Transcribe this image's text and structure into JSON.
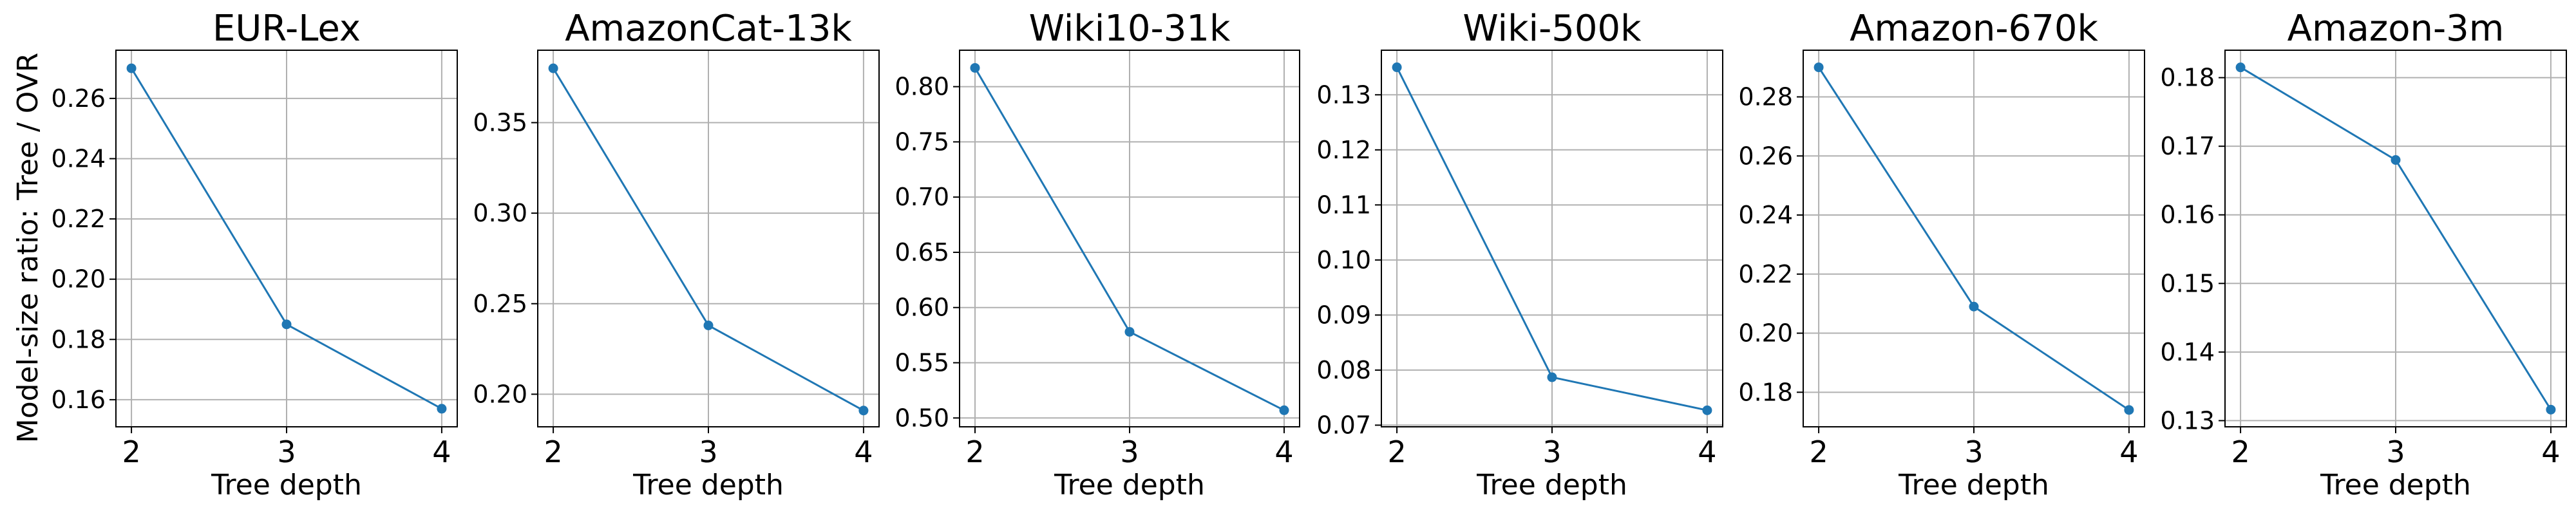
{
  "figure": {
    "ylabel": "Model-size ratio: Tree / OVR"
  },
  "chart_data": [
    {
      "type": "line",
      "title": "EUR-Lex",
      "xlabel": "Tree depth",
      "x": [
        2,
        3,
        4
      ],
      "xticks": [
        "2",
        "3",
        "4"
      ],
      "series": [
        {
          "values": [
            0.27,
            0.185,
            0.157
          ]
        }
      ],
      "ylim": [
        0.151,
        0.276
      ],
      "yticks": [
        0.16,
        0.18,
        0.2,
        0.22,
        0.24,
        0.26
      ],
      "ytick_labels": [
        "0.16",
        "0.18",
        "0.20",
        "0.22",
        "0.24",
        "0.26"
      ],
      "grid": true,
      "color": "#1f77b4"
    },
    {
      "type": "line",
      "title": "AmazonCat-13k",
      "xlabel": "Tree depth",
      "x": [
        2,
        3,
        4
      ],
      "xticks": [
        "2",
        "3",
        "4"
      ],
      "series": [
        {
          "values": [
            0.38,
            0.238,
            0.191
          ]
        }
      ],
      "ylim": [
        0.182,
        0.39
      ],
      "yticks": [
        0.2,
        0.25,
        0.3,
        0.35
      ],
      "ytick_labels": [
        "0.20",
        "0.25",
        "0.30",
        "0.35"
      ],
      "grid": true,
      "color": "#1f77b4"
    },
    {
      "type": "line",
      "title": "Wiki10-31k",
      "xlabel": "Tree depth",
      "x": [
        2,
        3,
        4
      ],
      "xticks": [
        "2",
        "3",
        "4"
      ],
      "series": [
        {
          "values": [
            0.817,
            0.578,
            0.507
          ]
        }
      ],
      "ylim": [
        0.492,
        0.833
      ],
      "yticks": [
        0.5,
        0.55,
        0.6,
        0.65,
        0.7,
        0.75,
        0.8
      ],
      "ytick_labels": [
        "0.50",
        "0.55",
        "0.60",
        "0.65",
        "0.70",
        "0.75",
        "0.80"
      ],
      "grid": true,
      "color": "#1f77b4"
    },
    {
      "type": "line",
      "title": "Wiki-500k",
      "xlabel": "Tree depth",
      "x": [
        2,
        3,
        4
      ],
      "xticks": [
        "2",
        "3",
        "4"
      ],
      "series": [
        {
          "values": [
            0.135,
            0.0787,
            0.0727
          ]
        }
      ],
      "ylim": [
        0.0697,
        0.1381
      ],
      "yticks": [
        0.07,
        0.08,
        0.09,
        0.1,
        0.11,
        0.12,
        0.13
      ],
      "ytick_labels": [
        "0.07",
        "0.08",
        "0.09",
        "0.10",
        "0.11",
        "0.12",
        "0.13"
      ],
      "grid": true,
      "color": "#1f77b4"
    },
    {
      "type": "line",
      "title": "Amazon-670k",
      "xlabel": "Tree depth",
      "x": [
        2,
        3,
        4
      ],
      "xticks": [
        "2",
        "3",
        "4"
      ],
      "series": [
        {
          "values": [
            0.29,
            0.209,
            0.174
          ]
        }
      ],
      "ylim": [
        0.1683,
        0.2958
      ],
      "yticks": [
        0.18,
        0.2,
        0.22,
        0.24,
        0.26,
        0.28
      ],
      "ytick_labels": [
        "0.18",
        "0.20",
        "0.22",
        "0.24",
        "0.26",
        "0.28"
      ],
      "grid": true,
      "color": "#1f77b4"
    },
    {
      "type": "line",
      "title": "Amazon-3m",
      "xlabel": "Tree depth",
      "x": [
        2,
        3,
        4
      ],
      "xticks": [
        "2",
        "3",
        "4"
      ],
      "series": [
        {
          "values": [
            0.1815,
            0.168,
            0.1316
          ]
        }
      ],
      "ylim": [
        0.1291,
        0.184
      ],
      "yticks": [
        0.13,
        0.14,
        0.15,
        0.16,
        0.17,
        0.18
      ],
      "ytick_labels": [
        "0.13",
        "0.14",
        "0.15",
        "0.16",
        "0.17",
        "0.18"
      ],
      "grid": true,
      "color": "#1f77b4"
    }
  ]
}
